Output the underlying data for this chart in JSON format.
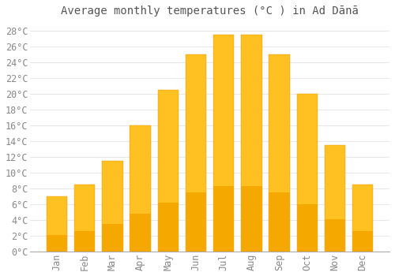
{
  "title": "Average monthly temperatures (°C ) in Ad Dānā",
  "months": [
    "Jan",
    "Feb",
    "Mar",
    "Apr",
    "May",
    "Jun",
    "Jul",
    "Aug",
    "Sep",
    "Oct",
    "Nov",
    "Dec"
  ],
  "values": [
    7,
    8.5,
    11.5,
    16,
    20.5,
    25,
    27.5,
    27.5,
    25,
    20,
    13.5,
    8.5
  ],
  "bar_color_top": "#FFC022",
  "bar_color_bottom": "#F5A800",
  "bar_edge_color": "#E89800",
  "background_color": "#FFFFFF",
  "grid_color": "#E8E8E8",
  "ylim": [
    0,
    29
  ],
  "yticks": [
    0,
    2,
    4,
    6,
    8,
    10,
    12,
    14,
    16,
    18,
    20,
    22,
    24,
    26,
    28
  ],
  "title_fontsize": 10,
  "tick_fontsize": 8.5,
  "tick_color": "#888888",
  "title_color": "#555555"
}
